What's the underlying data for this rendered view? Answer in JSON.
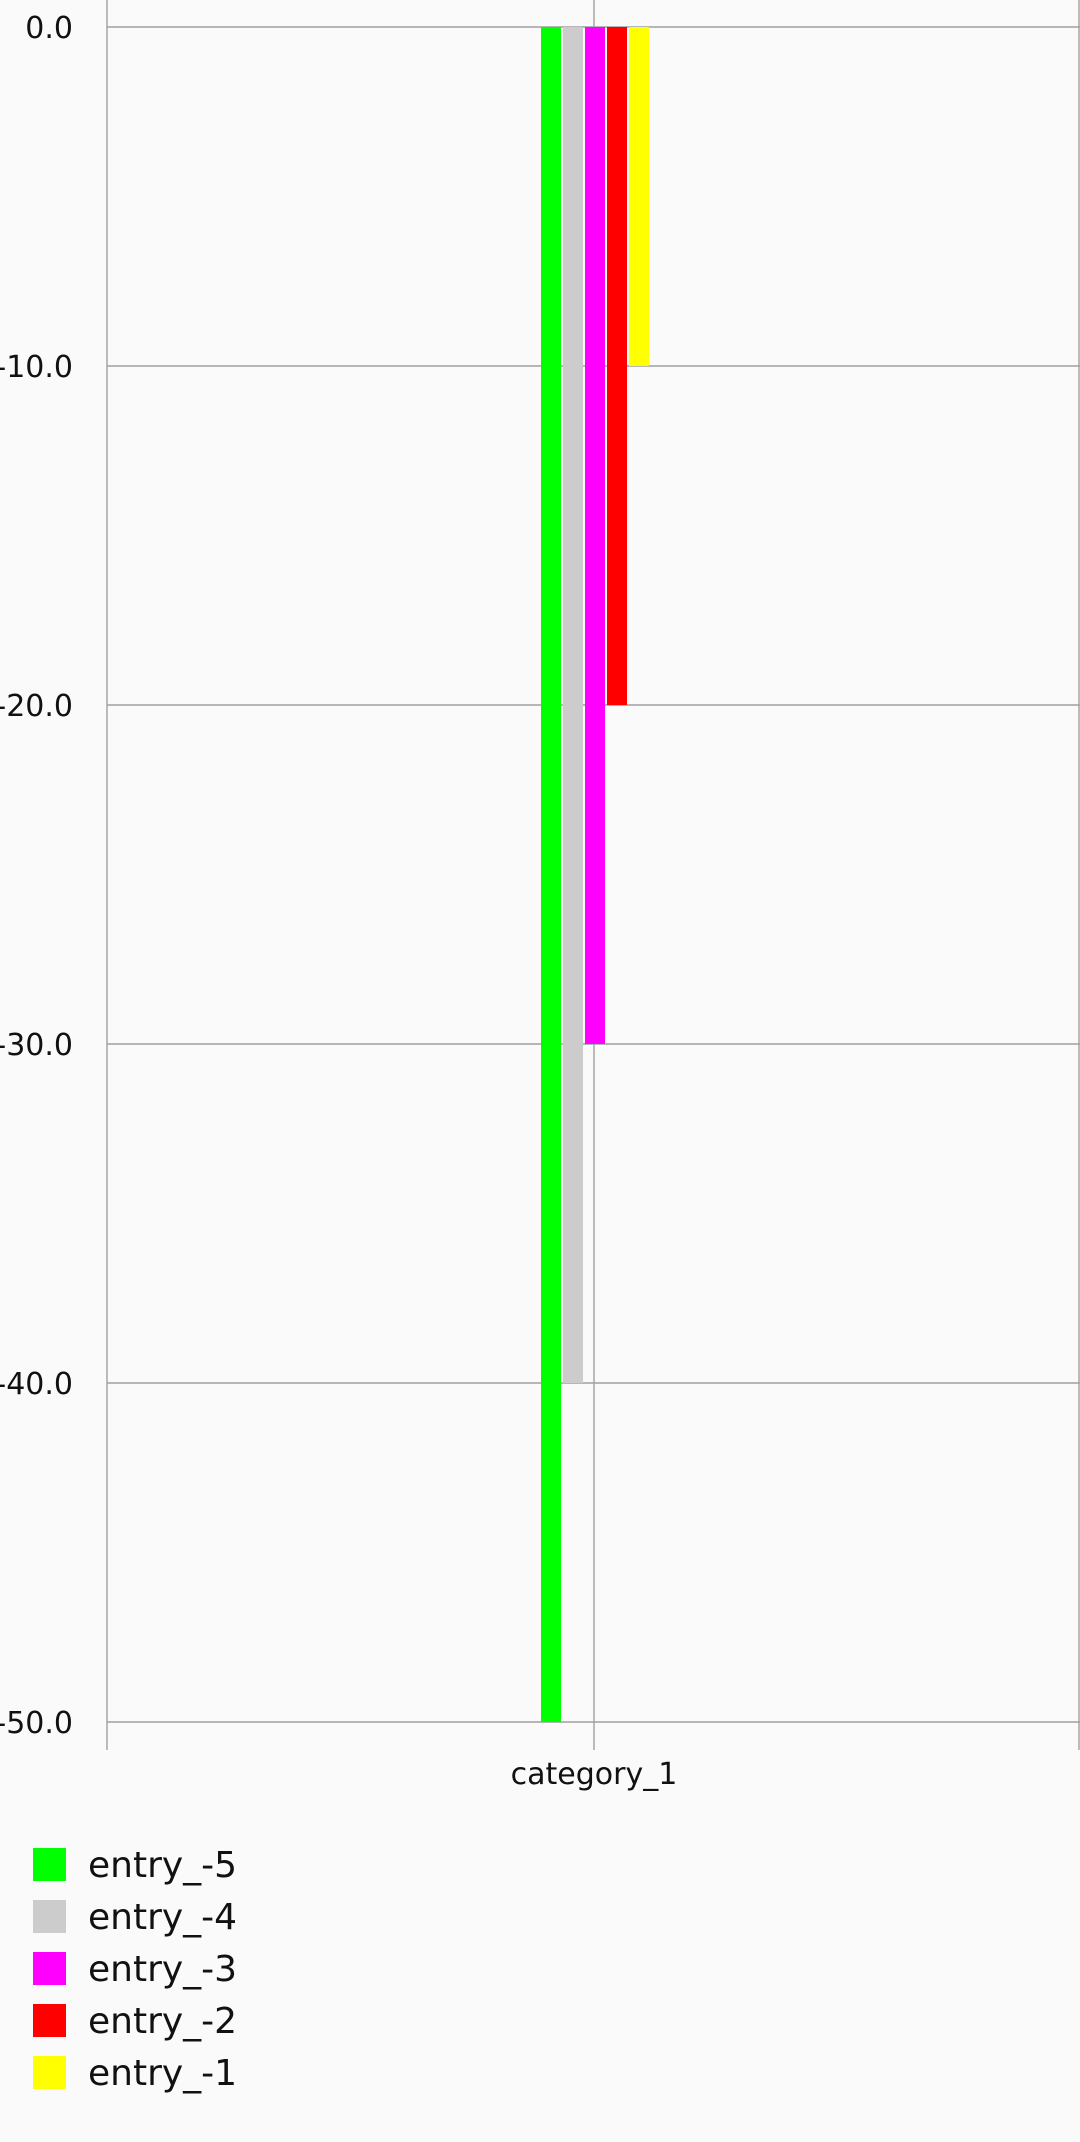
{
  "chart_data": {
    "type": "bar",
    "categories": [
      "category_1"
    ],
    "series": [
      {
        "name": "entry_-5",
        "values": [
          -50
        ],
        "color": "#00ff00"
      },
      {
        "name": "entry_-4",
        "values": [
          -40
        ],
        "color": "#cccccc"
      },
      {
        "name": "entry_-3",
        "values": [
          -30
        ],
        "color": "#ff00ff"
      },
      {
        "name": "entry_-2",
        "values": [
          -20
        ],
        "color": "#ff0000"
      },
      {
        "name": "entry_-1",
        "values": [
          -10
        ],
        "color": "#ffff00"
      }
    ],
    "y_ticks": [
      "0.0",
      "-10.0",
      "-20.0",
      "-30.0",
      "-40.0",
      "-50.0"
    ],
    "ylim": [
      -50,
      0
    ],
    "grid": true,
    "legend_position": "bottom-left",
    "background_color": "#fafafa",
    "grid_color": "#a0a0a0"
  }
}
